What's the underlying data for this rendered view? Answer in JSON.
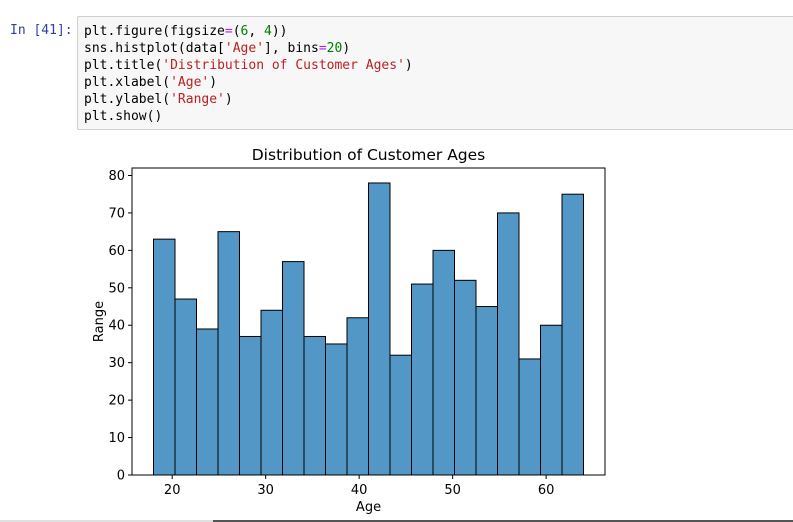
{
  "cell": {
    "prompt": "In [41]:",
    "code_lines": [
      [
        {
          "t": "plt.figure(figsize",
          "c": "plain"
        },
        {
          "t": "=",
          "c": "op"
        },
        {
          "t": "(",
          "c": "plain"
        },
        {
          "t": "6",
          "c": "num"
        },
        {
          "t": ", ",
          "c": "plain"
        },
        {
          "t": "4",
          "c": "num"
        },
        {
          "t": "))",
          "c": "plain"
        }
      ],
      [
        {
          "t": "sns.histplot(data[",
          "c": "plain"
        },
        {
          "t": "'Age'",
          "c": "str"
        },
        {
          "t": "], bins",
          "c": "plain"
        },
        {
          "t": "=",
          "c": "op"
        },
        {
          "t": "20",
          "c": "num"
        },
        {
          "t": ")",
          "c": "plain"
        }
      ],
      [
        {
          "t": "plt.title(",
          "c": "plain"
        },
        {
          "t": "'Distribution of Customer Ages'",
          "c": "str"
        },
        {
          "t": ")",
          "c": "plain"
        }
      ],
      [
        {
          "t": "plt.xlabel(",
          "c": "plain"
        },
        {
          "t": "'Age'",
          "c": "str"
        },
        {
          "t": ")",
          "c": "plain"
        }
      ],
      [
        {
          "t": "plt.ylabel(",
          "c": "plain"
        },
        {
          "t": "'Range'",
          "c": "str"
        },
        {
          "t": ")",
          "c": "plain"
        }
      ],
      [
        {
          "t": "plt.show()",
          "c": "plain"
        }
      ]
    ]
  },
  "chart_data": {
    "type": "bar",
    "title": "Distribution of Customer Ages",
    "xlabel": "Age",
    "ylabel": "Range",
    "bin_edges": [
      18,
      20.3,
      22.6,
      24.9,
      27.2,
      29.5,
      31.8,
      34.1,
      36.4,
      38.7,
      41,
      43.3,
      45.6,
      47.9,
      50.2,
      52.5,
      54.8,
      57.1,
      59.4,
      61.7,
      64
    ],
    "values": [
      63,
      47,
      39,
      65,
      37,
      44,
      57,
      37,
      35,
      42,
      78,
      32,
      51,
      60,
      52,
      45,
      70,
      31,
      40,
      75
    ],
    "xlim": [
      15.7,
      66.3
    ],
    "ylim": [
      0,
      82
    ],
    "x_ticks": [
      20,
      30,
      40,
      50,
      60
    ],
    "y_ticks": [
      0,
      10,
      20,
      30,
      40,
      50,
      60,
      70,
      80
    ],
    "bar_color": "#5297c6",
    "edge_color": "#000000",
    "grid": false,
    "legend": "none"
  },
  "colors": {
    "prompt": "#303f9f",
    "cell_bg": "#f7f7f7",
    "cell_border": "#cfcfcf"
  }
}
